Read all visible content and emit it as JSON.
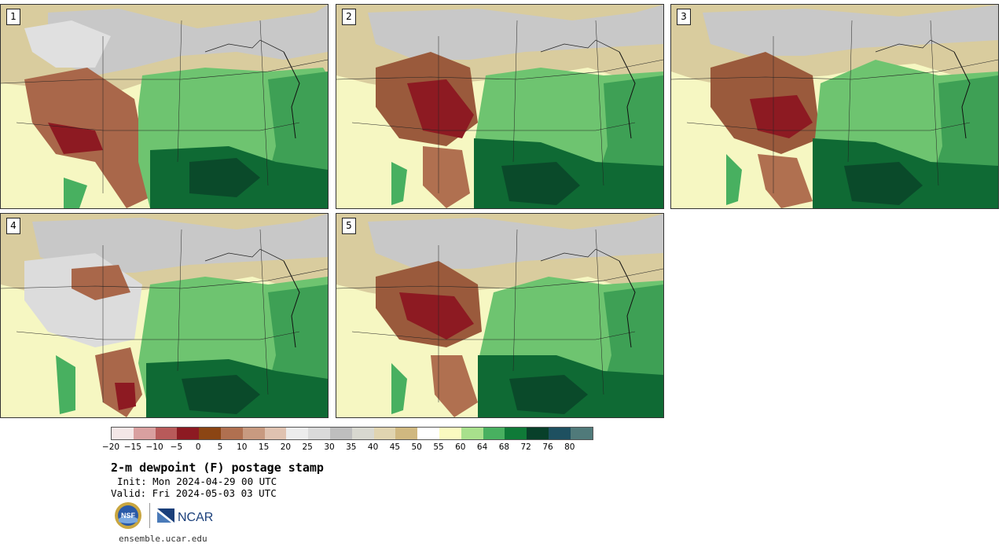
{
  "panels": [
    {
      "label": "1"
    },
    {
      "label": "2"
    },
    {
      "label": "3"
    },
    {
      "label": "4"
    },
    {
      "label": "5"
    }
  ],
  "colorbar": {
    "colors": [
      "#f4e7e7",
      "#d9a0a0",
      "#b85a5a",
      "#8d1a22",
      "#8b4513",
      "#b07050",
      "#c89a80",
      "#dfc2b0",
      "#ececec",
      "#dadada",
      "#bebebe",
      "#d8d8d0",
      "#e0d4b0",
      "#d0b880",
      "#ffffff",
      "#fafac0",
      "#a8e08c",
      "#48b060",
      "#0f7a38",
      "#08402a",
      "#1e5060",
      "#507a7a"
    ],
    "tick_labels": [
      "−20",
      "−15",
      "−10",
      "−5",
      "0",
      "5",
      "10",
      "15",
      "20",
      "25",
      "30",
      "35",
      "40",
      "45",
      "50",
      "55",
      "60",
      "64",
      "68",
      "72",
      "76",
      "80"
    ]
  },
  "title": "2-m dewpoint (F) postage stamp",
  "init_text": "Init: Mon 2024-04-29 00 UTC",
  "valid_text": "Valid: Fri 2024-05-03 03 UTC",
  "logos": {
    "nsf_text": "NSF",
    "ncar_text": "NCAR"
  },
  "footer": "ensemble.ucar.edu"
}
